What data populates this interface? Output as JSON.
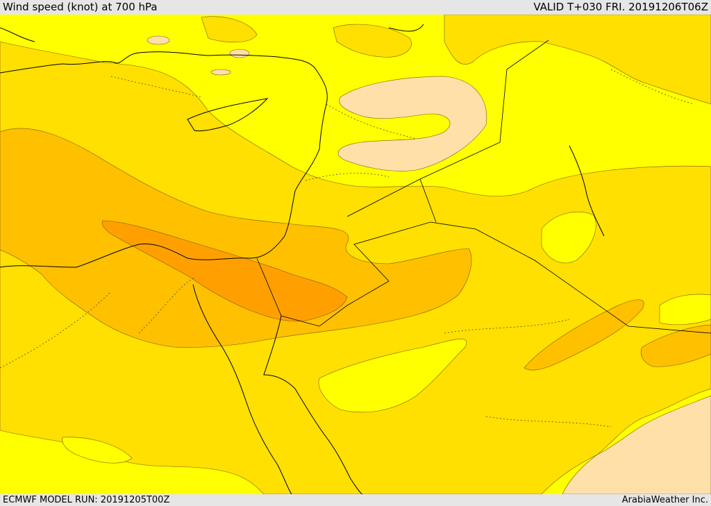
{
  "header": {
    "title": "Wind speed (knot) at 700 hPa",
    "valid_time": "VALID T+030 FRI. 20191206T06Z"
  },
  "footer": {
    "model_run": "ECMWF MODEL RUN: 20191205T00Z",
    "credit": "ArabiaWeather Inc."
  },
  "map": {
    "colors": {
      "level_1": "#ffff00",
      "level_2": "#ffe000",
      "level_3": "#ffc000",
      "level_4": "#ffa000",
      "calm": "#ffe0a8",
      "coast": "#000000",
      "contour": "#7a5a1a"
    }
  }
}
